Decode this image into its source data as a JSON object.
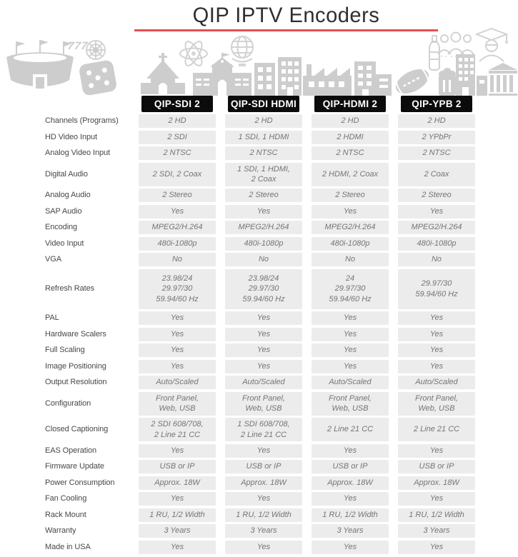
{
  "title": "QIP IPTV Encoders",
  "theme": {
    "accent_red": "#e25050",
    "header_bg": "#0b0b0b",
    "header_text": "#ffffff",
    "cell_bg": "#ececec",
    "cell_text": "#757575",
    "label_text": "#484848",
    "icon_gray": "#cdcdcd"
  },
  "banner": {
    "casino_text": "777",
    "icons": [
      "stadium-icon",
      "slot-777-icon",
      "roulette-icon",
      "dice-icon",
      "church-icon",
      "atom-icon",
      "school-icon",
      "globe-icon",
      "apartment-icon",
      "factory-icon",
      "office-building-icon",
      "football-icon",
      "bottle-icon",
      "beer-mug-icon",
      "family-icon",
      "graduate-icon",
      "city-tower-icon",
      "bank-icon"
    ]
  },
  "table": {
    "columns": [
      "QIP-SDI 2",
      "QIP-SDI HDMI",
      "QIP-HDMI 2",
      "QIP-YPB 2"
    ],
    "rows": [
      {
        "label": "Channels (Programs)",
        "values": [
          "2 HD",
          "2 HD",
          "2 HD",
          "2 HD"
        ]
      },
      {
        "label": "HD Video Input",
        "values": [
          "2 SDI",
          "1 SDI, 1 HDMI",
          "2 HDMI",
          "2 YPbPr"
        ]
      },
      {
        "label": "Analog Video Input",
        "values": [
          "2 NTSC",
          "2 NTSC",
          "2 NTSC",
          "2 NTSC"
        ]
      },
      {
        "label": "Digital Audio",
        "values": [
          "2 SDI, 2 Coax",
          "1 SDI, 1 HDMI,\n2 Coax",
          "2 HDMI, 2 Coax",
          "2 Coax"
        ]
      },
      {
        "label": "Analog Audio",
        "values": [
          "2 Stereo",
          "2 Stereo",
          "2 Stereo",
          "2 Stereo"
        ]
      },
      {
        "label": "SAP Audio",
        "values": [
          "Yes",
          "Yes",
          "Yes",
          "Yes"
        ]
      },
      {
        "label": "Encoding",
        "values": [
          "MPEG2/H.264",
          "MPEG2/H.264",
          "MPEG2/H.264",
          "MPEG2/H.264"
        ]
      },
      {
        "label": "Video Input",
        "values": [
          "480i-1080p",
          "480i-1080p",
          "480i-1080p",
          "480i-1080p"
        ]
      },
      {
        "label": "VGA",
        "values": [
          "No",
          "No",
          "No",
          "No"
        ]
      },
      {
        "label": "Refresh Rates",
        "values": [
          "23.98/24\n29.97/30\n59.94/60 Hz",
          "23.98/24\n29.97/30\n59.94/60 Hz",
          "24\n29.97/30\n59.94/60 Hz",
          "29.97/30\n59.94/60 Hz"
        ]
      },
      {
        "label": "PAL",
        "values": [
          "Yes",
          "Yes",
          "Yes",
          "Yes"
        ]
      },
      {
        "label": "Hardware Scalers",
        "values": [
          "Yes",
          "Yes",
          "Yes",
          "Yes"
        ]
      },
      {
        "label": "Full Scaling",
        "values": [
          "Yes",
          "Yes",
          "Yes",
          "Yes"
        ]
      },
      {
        "label": "Image Positioning",
        "values": [
          "Yes",
          "Yes",
          "Yes",
          "Yes"
        ]
      },
      {
        "label": "Output Resolution",
        "values": [
          "Auto/Scaled",
          "Auto/Scaled",
          "Auto/Scaled",
          "Auto/Scaled"
        ]
      },
      {
        "label": "Configuration",
        "values": [
          "Front Panel,\nWeb, USB",
          "Front Panel,\nWeb, USB",
          "Front Panel,\nWeb, USB",
          "Front Panel,\nWeb, USB"
        ]
      },
      {
        "label": "Closed Captioning",
        "values": [
          "2 SDI 608/708,\n2 Line 21 CC",
          "1 SDI 608/708,\n2 Line 21 CC",
          "2 Line 21 CC",
          "2 Line 21 CC"
        ]
      },
      {
        "label": "EAS Operation",
        "values": [
          "Yes",
          "Yes",
          "Yes",
          "Yes"
        ]
      },
      {
        "label": "Firmware Update",
        "values": [
          "USB or IP",
          "USB or IP",
          "USB or IP",
          "USB or IP"
        ]
      },
      {
        "label": "Power Consumption",
        "values": [
          "Approx. 18W",
          "Approx. 18W",
          "Approx. 18W",
          "Approx. 18W"
        ]
      },
      {
        "label": "Fan Cooling",
        "values": [
          "Yes",
          "Yes",
          "Yes",
          "Yes"
        ]
      },
      {
        "label": "Rack Mount",
        "values": [
          "1 RU, 1/2 Width",
          "1 RU, 1/2 Width",
          "1 RU, 1/2 Width",
          "1 RU, 1/2 Width"
        ]
      },
      {
        "label": "Warranty",
        "values": [
          "3 Years",
          "3 Years",
          "3 Years",
          "3 Years"
        ]
      },
      {
        "label": "Made in USA",
        "values": [
          "Yes",
          "Yes",
          "Yes",
          "Yes"
        ]
      }
    ]
  }
}
